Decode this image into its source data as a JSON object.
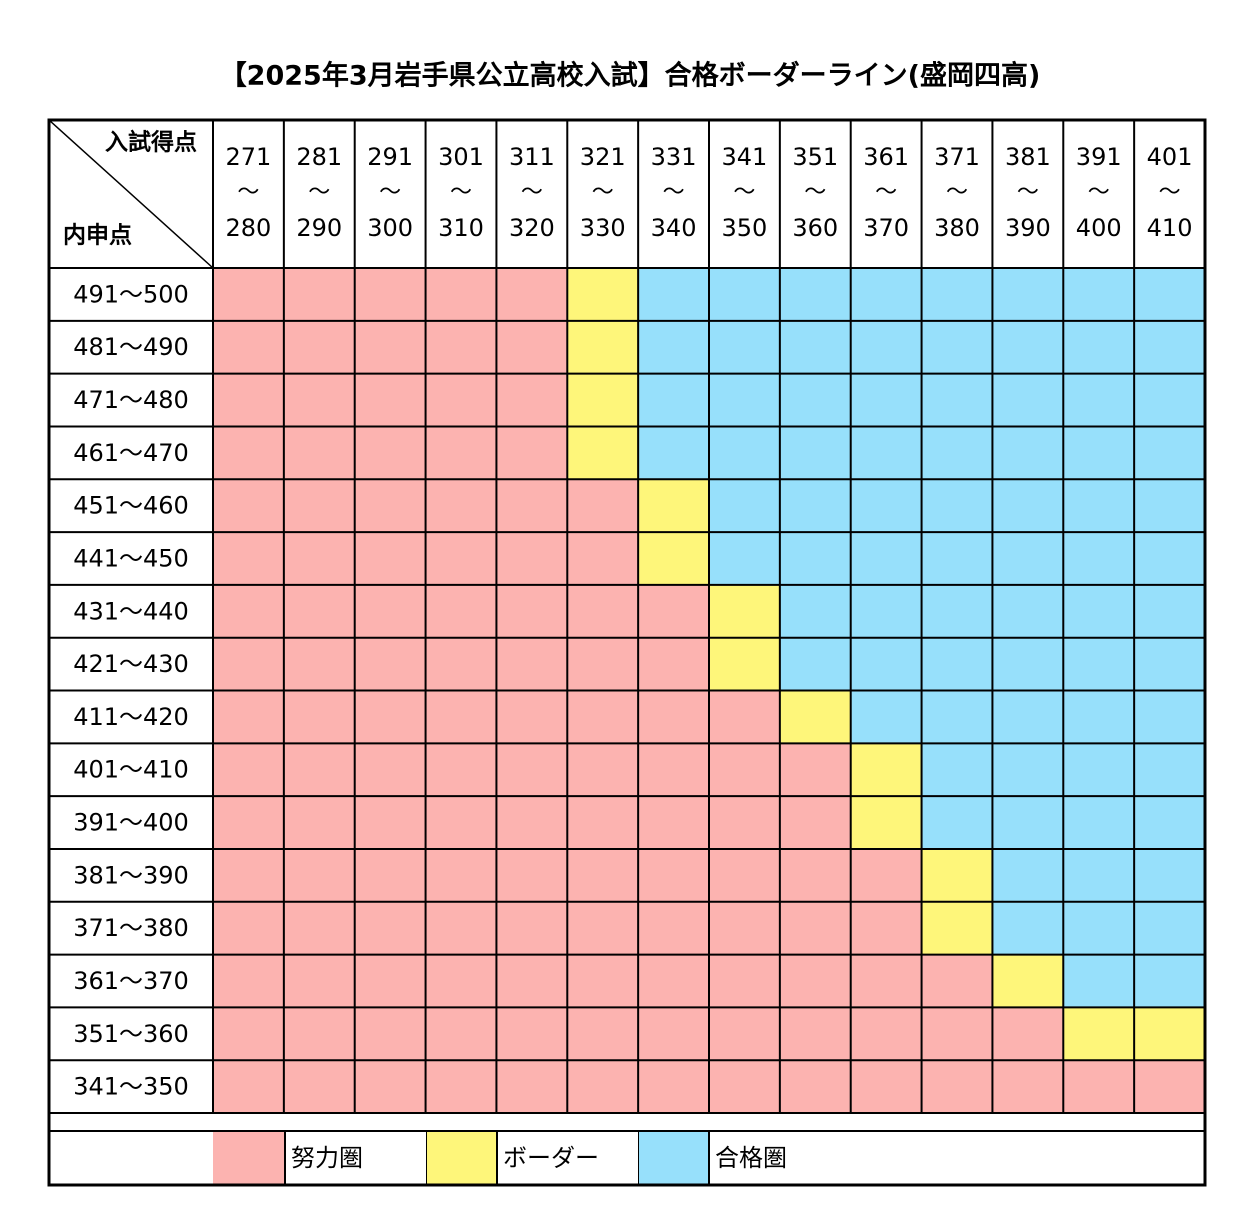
{
  "title": "【2025年3月岩手県公立高校入試】合格ボーダーライン(盛岡四高)",
  "corner": {
    "top": "入試得点",
    "bottom": "内申点"
  },
  "columns": [
    {
      "from": "271",
      "sep": "～",
      "to": "280"
    },
    {
      "from": "281",
      "sep": "～",
      "to": "290"
    },
    {
      "from": "291",
      "sep": "～",
      "to": "300"
    },
    {
      "from": "301",
      "sep": "～",
      "to": "310"
    },
    {
      "from": "311",
      "sep": "～",
      "to": "320"
    },
    {
      "from": "321",
      "sep": "～",
      "to": "330"
    },
    {
      "from": "331",
      "sep": "～",
      "to": "340"
    },
    {
      "from": "341",
      "sep": "～",
      "to": "350"
    },
    {
      "from": "351",
      "sep": "～",
      "to": "360"
    },
    {
      "from": "361",
      "sep": "～",
      "to": "370"
    },
    {
      "from": "371",
      "sep": "～",
      "to": "380"
    },
    {
      "from": "381",
      "sep": "～",
      "to": "390"
    },
    {
      "from": "391",
      "sep": "～",
      "to": "400"
    },
    {
      "from": "401",
      "sep": "～",
      "to": "410"
    }
  ],
  "rows": [
    {
      "label": "491～500",
      "cells": [
        0,
        0,
        0,
        0,
        0,
        1,
        2,
        2,
        2,
        2,
        2,
        2,
        2,
        2
      ]
    },
    {
      "label": "481～490",
      "cells": [
        0,
        0,
        0,
        0,
        0,
        1,
        2,
        2,
        2,
        2,
        2,
        2,
        2,
        2
      ]
    },
    {
      "label": "471～480",
      "cells": [
        0,
        0,
        0,
        0,
        0,
        1,
        2,
        2,
        2,
        2,
        2,
        2,
        2,
        2
      ]
    },
    {
      "label": "461～470",
      "cells": [
        0,
        0,
        0,
        0,
        0,
        1,
        2,
        2,
        2,
        2,
        2,
        2,
        2,
        2
      ]
    },
    {
      "label": "451～460",
      "cells": [
        0,
        0,
        0,
        0,
        0,
        0,
        1,
        2,
        2,
        2,
        2,
        2,
        2,
        2
      ]
    },
    {
      "label": "441～450",
      "cells": [
        0,
        0,
        0,
        0,
        0,
        0,
        1,
        2,
        2,
        2,
        2,
        2,
        2,
        2
      ]
    },
    {
      "label": "431～440",
      "cells": [
        0,
        0,
        0,
        0,
        0,
        0,
        0,
        1,
        2,
        2,
        2,
        2,
        2,
        2
      ]
    },
    {
      "label": "421～430",
      "cells": [
        0,
        0,
        0,
        0,
        0,
        0,
        0,
        1,
        2,
        2,
        2,
        2,
        2,
        2
      ]
    },
    {
      "label": "411～420",
      "cells": [
        0,
        0,
        0,
        0,
        0,
        0,
        0,
        0,
        1,
        2,
        2,
        2,
        2,
        2
      ]
    },
    {
      "label": "401～410",
      "cells": [
        0,
        0,
        0,
        0,
        0,
        0,
        0,
        0,
        0,
        1,
        2,
        2,
        2,
        2
      ]
    },
    {
      "label": "391～400",
      "cells": [
        0,
        0,
        0,
        0,
        0,
        0,
        0,
        0,
        0,
        1,
        2,
        2,
        2,
        2
      ]
    },
    {
      "label": "381～390",
      "cells": [
        0,
        0,
        0,
        0,
        0,
        0,
        0,
        0,
        0,
        0,
        1,
        2,
        2,
        2
      ]
    },
    {
      "label": "371～380",
      "cells": [
        0,
        0,
        0,
        0,
        0,
        0,
        0,
        0,
        0,
        0,
        1,
        2,
        2,
        2
      ]
    },
    {
      "label": "361～370",
      "cells": [
        0,
        0,
        0,
        0,
        0,
        0,
        0,
        0,
        0,
        0,
        0,
        1,
        2,
        2
      ]
    },
    {
      "label": "351～360",
      "cells": [
        0,
        0,
        0,
        0,
        0,
        0,
        0,
        0,
        0,
        0,
        0,
        0,
        1,
        1
      ]
    },
    {
      "label": "341～350",
      "cells": [
        0,
        0,
        0,
        0,
        0,
        0,
        0,
        0,
        0,
        0,
        0,
        0,
        0,
        0
      ]
    }
  ],
  "legend": [
    {
      "label": "努力圏",
      "color": "#fcb3b0"
    },
    {
      "label": "ボーダー",
      "color": "#fef67a"
    },
    {
      "label": "合格圏",
      "color": "#97e0fb"
    }
  ]
}
